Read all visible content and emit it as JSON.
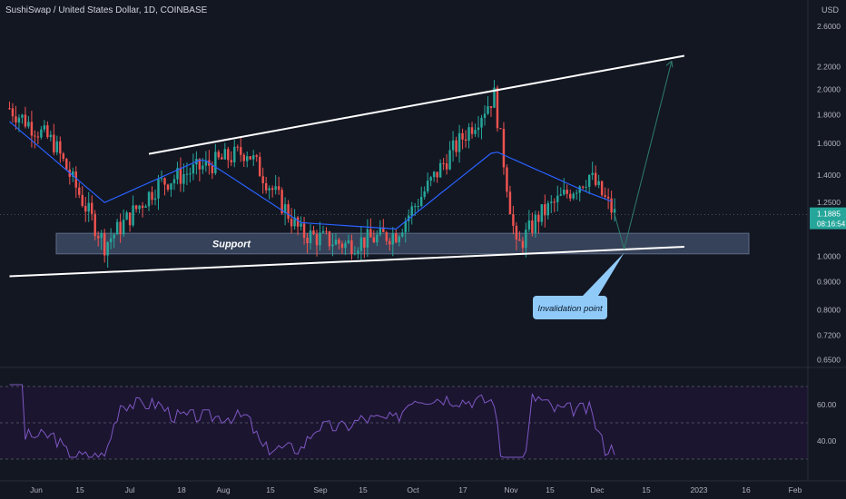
{
  "header": {
    "title": "SushiSwap / United States Dollar, 1D, COINBASE",
    "currency": "USD"
  },
  "price_axis": {
    "ticks": [
      "2.6000",
      "2.2000",
      "2.0000",
      "1.8000",
      "1.6000",
      "1.4000",
      "1.2500",
      "1.0000",
      "0.9000",
      "0.8000",
      "0.7200",
      "0.6500"
    ],
    "current_price": "1.1885",
    "countdown": "08:16:54"
  },
  "time_axis": {
    "ticks": [
      "Jun",
      "15",
      "Jul",
      "18",
      "Aug",
      "15",
      "Sep",
      "15",
      "Oct",
      "17",
      "Nov",
      "15",
      "Dec",
      "15",
      "2023",
      "16",
      "Feb"
    ]
  },
  "annotations": {
    "support_label": "Support",
    "invalidation_label": "Invalidation point"
  },
  "rsi": {
    "ticks": [
      "60.00",
      "40.00"
    ]
  },
  "colors": {
    "background": "#131722",
    "up": "#26a69a",
    "down": "#ef5350",
    "ma": "#2962ff",
    "rsi_line": "#7e57c2",
    "support_zone": "#3d4a63",
    "price_label": "#26a69a"
  },
  "chart_data": {
    "type": "candlestick",
    "symbol": "SushiSwap / United States Dollar",
    "interval": "1D",
    "exchange": "COINBASE",
    "y_scale": "log",
    "ylim": [
      0.63,
      2.9
    ],
    "x_range": [
      "2022-05-29",
      "2023-02-08"
    ],
    "series": [
      {
        "name": "price",
        "x": [
          "2022-06-01",
          "2022-06-15",
          "2022-07-01",
          "2022-07-18",
          "2022-08-01",
          "2022-08-15",
          "2022-09-01",
          "2022-09-15",
          "2022-10-01",
          "2022-10-17",
          "2022-11-01",
          "2022-11-08",
          "2022-11-15",
          "2022-12-01",
          "2022-12-09"
        ],
        "y": [
          1.85,
          1.6,
          1.05,
          1.35,
          1.45,
          1.55,
          1.1,
          1.05,
          1.1,
          1.5,
          1.95,
          1.03,
          1.18,
          1.4,
          1.19
        ]
      },
      {
        "name": "moving average",
        "x": [
          "2022-06-01",
          "2022-07-01",
          "2022-08-01",
          "2022-09-01",
          "2022-10-01",
          "2022-11-01",
          "2022-12-01",
          "2022-12-09"
        ],
        "y": [
          1.75,
          1.25,
          1.5,
          1.15,
          1.12,
          1.55,
          1.3,
          1.25
        ]
      }
    ],
    "support_zone": [
      1.01,
      1.1
    ],
    "trendlines": [
      {
        "from": {
          "date": "2022-07-15",
          "price": 1.53
        },
        "to": {
          "date": "2022-12-31",
          "price": 2.3
        }
      },
      {
        "from": {
          "date": "2022-06-01",
          "price": 0.92
        },
        "to": {
          "date": "2022-12-31",
          "price": 1.04
        }
      }
    ],
    "projection": {
      "from": {
        "date": "2022-12-12",
        "price": 1.03
      },
      "to": {
        "date": "2022-12-27",
        "price": 2.25
      }
    },
    "rsi_ylim": [
      30,
      72
    ]
  }
}
